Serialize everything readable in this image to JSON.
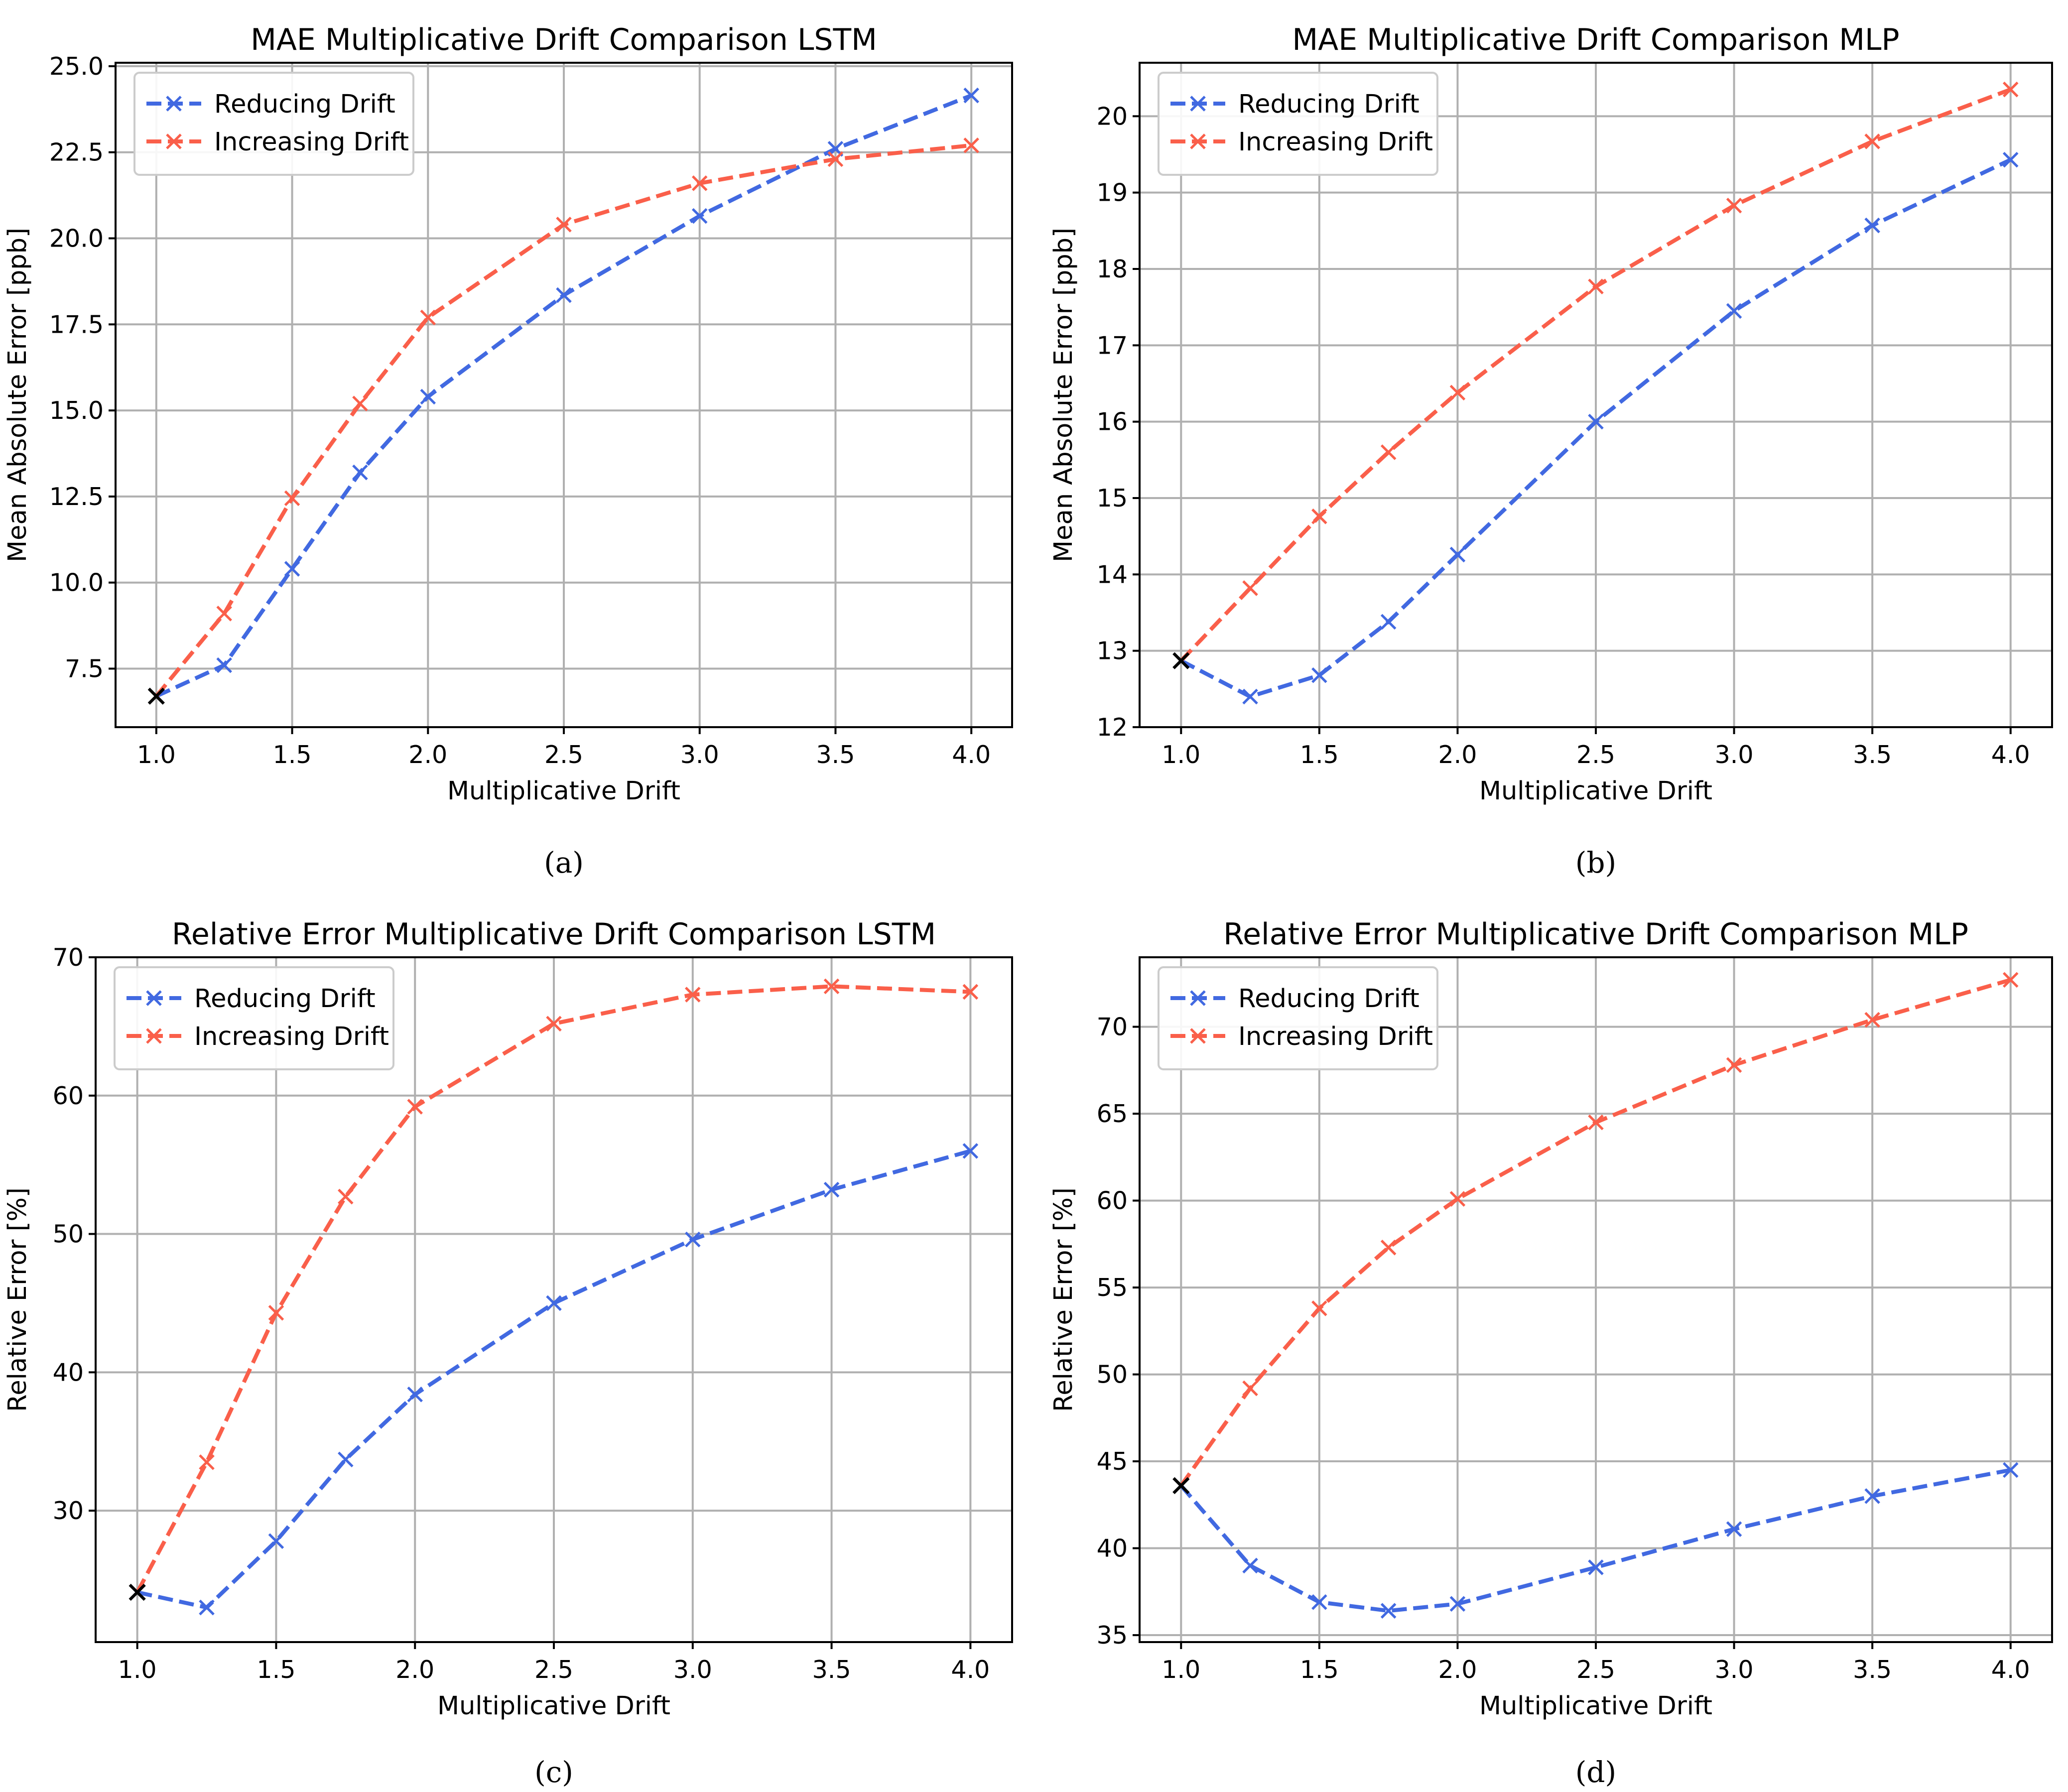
{
  "colors": {
    "reducing": "#4169e1",
    "increasing": "#fa5f4a",
    "baseline": "#000000",
    "grid": "#b0b0b0",
    "axes": "#000000"
  },
  "chart_data": [
    {
      "type": "line",
      "panel": "a",
      "caption": "(a)",
      "title": "MAE Multiplicative Drift Comparison LSTM",
      "xlabel": "Multiplicative Drift",
      "ylabel": "Mean Absolute Error [ppb]",
      "xlim": [
        0.85,
        4.15
      ],
      "ylim": [
        5.8,
        25.1
      ],
      "xticks": [
        1.0,
        1.5,
        2.0,
        2.5,
        3.0,
        3.5,
        4.0
      ],
      "xtick_labels": [
        "1.0",
        "1.5",
        "2.0",
        "2.5",
        "3.0",
        "3.5",
        "4.0"
      ],
      "yticks": [
        7.5,
        10.0,
        12.5,
        15.0,
        17.5,
        20.0,
        22.5,
        25.0
      ],
      "ytick_labels": [
        "7.5",
        "10.0",
        "12.5",
        "15.0",
        "17.5",
        "20.0",
        "22.5",
        "25.0"
      ],
      "legend_position": "upper-left",
      "grid": true,
      "x": [
        1.0,
        1.25,
        1.5,
        1.75,
        2.0,
        2.5,
        3.0,
        3.5,
        4.0
      ],
      "series": [
        {
          "name": "Reducing Drift",
          "values": [
            6.7,
            7.6,
            10.4,
            13.2,
            15.4,
            18.35,
            20.65,
            22.6,
            24.15
          ]
        },
        {
          "name": "Increasing Drift",
          "values": [
            6.7,
            9.1,
            12.45,
            15.2,
            17.7,
            20.4,
            21.6,
            22.3,
            22.7
          ]
        }
      ],
      "baseline_point": {
        "x": 1.0,
        "y": 6.7
      }
    },
    {
      "type": "line",
      "panel": "b",
      "caption": "(b)",
      "title": "MAE Multiplicative Drift Comparison MLP",
      "xlabel": "Multiplicative Drift",
      "ylabel": "Mean Absolute Error [ppb]",
      "xlim": [
        0.85,
        4.15
      ],
      "ylim": [
        12.0,
        20.7
      ],
      "xticks": [
        1.0,
        1.5,
        2.0,
        2.5,
        3.0,
        3.5,
        4.0
      ],
      "xtick_labels": [
        "1.0",
        "1.5",
        "2.0",
        "2.5",
        "3.0",
        "3.5",
        "4.0"
      ],
      "yticks": [
        12,
        13,
        14,
        15,
        16,
        17,
        18,
        19,
        20
      ],
      "ytick_labels": [
        "12",
        "13",
        "14",
        "15",
        "16",
        "17",
        "18",
        "19",
        "20"
      ],
      "legend_position": "upper-left",
      "grid": true,
      "x": [
        1.0,
        1.25,
        1.5,
        1.75,
        2.0,
        2.5,
        3.0,
        3.5,
        4.0
      ],
      "series": [
        {
          "name": "Reducing Drift",
          "values": [
            12.87,
            12.4,
            12.68,
            13.38,
            14.26,
            16.0,
            17.45,
            18.57,
            19.43
          ]
        },
        {
          "name": "Increasing Drift",
          "values": [
            12.87,
            13.82,
            14.76,
            15.6,
            16.38,
            17.77,
            18.83,
            19.67,
            20.35
          ]
        }
      ],
      "baseline_point": {
        "x": 1.0,
        "y": 12.87
      }
    },
    {
      "type": "line",
      "panel": "c",
      "caption": "(c)",
      "title": "Relative Error Multiplicative Drift Comparison LSTM",
      "xlabel": "Multiplicative Drift",
      "ylabel": "Relative Error [%]",
      "xlim": [
        0.85,
        4.15
      ],
      "ylim": [
        20.5,
        70.0
      ],
      "xticks": [
        1.0,
        1.5,
        2.0,
        2.5,
        3.0,
        3.5,
        4.0
      ],
      "xtick_labels": [
        "1.0",
        "1.5",
        "2.0",
        "2.5",
        "3.0",
        "3.5",
        "4.0"
      ],
      "yticks": [
        30,
        40,
        50,
        60,
        70
      ],
      "ytick_labels": [
        "30",
        "40",
        "50",
        "60",
        "70"
      ],
      "legend_position": "upper-left",
      "grid": true,
      "x": [
        1.0,
        1.25,
        1.5,
        1.75,
        2.0,
        2.5,
        3.0,
        3.5,
        4.0
      ],
      "series": [
        {
          "name": "Reducing Drift",
          "values": [
            24.1,
            23.0,
            27.8,
            33.7,
            38.4,
            45.0,
            49.6,
            53.2,
            56.0
          ]
        },
        {
          "name": "Increasing Drift",
          "values": [
            24.1,
            33.5,
            44.3,
            52.7,
            59.2,
            65.2,
            67.3,
            67.9,
            67.5
          ]
        }
      ],
      "baseline_point": {
        "x": 1.0,
        "y": 24.1
      }
    },
    {
      "type": "line",
      "panel": "d",
      "caption": "(d)",
      "title": "Relative Error Multiplicative Drift Comparison MLP",
      "xlabel": "Multiplicative Drift",
      "ylabel": "Relative Error [%]",
      "xlim": [
        0.85,
        4.15
      ],
      "ylim": [
        34.6,
        74.0
      ],
      "xticks": [
        1.0,
        1.5,
        2.0,
        2.5,
        3.0,
        3.5,
        4.0
      ],
      "xtick_labels": [
        "1.0",
        "1.5",
        "2.0",
        "2.5",
        "3.0",
        "3.5",
        "4.0"
      ],
      "yticks": [
        35,
        40,
        45,
        50,
        55,
        60,
        65,
        70
      ],
      "ytick_labels": [
        "35",
        "40",
        "45",
        "50",
        "55",
        "60",
        "65",
        "70"
      ],
      "legend_position": "upper-left",
      "grid": true,
      "x": [
        1.0,
        1.25,
        1.5,
        1.75,
        2.0,
        2.5,
        3.0,
        3.5,
        4.0
      ],
      "series": [
        {
          "name": "Reducing Drift",
          "values": [
            43.6,
            39.0,
            36.9,
            36.4,
            36.8,
            38.9,
            41.1,
            43.0,
            44.5
          ]
        },
        {
          "name": "Increasing Drift",
          "values": [
            43.6,
            49.2,
            53.8,
            57.3,
            60.1,
            64.5,
            67.8,
            70.4,
            72.7
          ]
        }
      ],
      "baseline_point": {
        "x": 1.0,
        "y": 43.6
      }
    }
  ]
}
